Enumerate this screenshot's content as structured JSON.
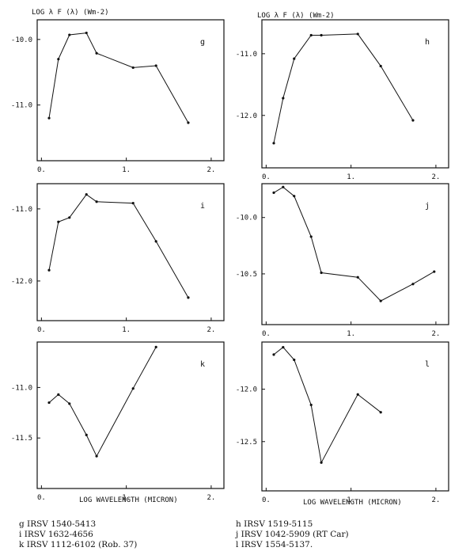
{
  "y_axis_title_left": "LOG λ F (λ) (Wm-2)",
  "y_axis_title_right": "LOG λ F (λ) (Wm-2)",
  "x_axis_title_left": "LOG WAVELENGTH (MICRON)",
  "x_axis_title_right": "LOG WAVELENGTH (MICRON)",
  "captions_left": [
    "g IRSV 1540-5413",
    "i IRSV 1632-4656",
    "k IRSV 1112-6102 (Rob. 37)"
  ],
  "captions_right": [
    "h IRSV 1519-5115",
    "j IRSV 1042-5909 (RT Car)",
    "l IRSV 1554-5137."
  ],
  "chart_data": [
    {
      "type": "line",
      "panel": "g",
      "xlim": [
        -0.05,
        2.15
      ],
      "ylim": [
        -11.85,
        -9.7
      ],
      "xticks": [
        "0.",
        "1.",
        "2."
      ],
      "xtick_values": [
        0,
        1,
        2
      ],
      "yticks": [
        "-10.0",
        "-11.0"
      ],
      "ytick_values": [
        -10.0,
        -11.0
      ],
      "series": [
        {
          "x": [
            0.09,
            0.2,
            0.33,
            0.53,
            0.65,
            1.08,
            1.35,
            1.73
          ],
          "y": [
            -11.2,
            -10.3,
            -9.93,
            -9.9,
            -10.21,
            -10.43,
            -10.4,
            -11.27
          ]
        }
      ]
    },
    {
      "type": "line",
      "panel": "h",
      "xlim": [
        -0.05,
        2.15
      ],
      "ylim": [
        -12.85,
        -10.45
      ],
      "xticks": [
        "0.",
        "1.",
        "2."
      ],
      "xtick_values": [
        0,
        1,
        2
      ],
      "yticks": [
        "-11.0",
        "-12.0"
      ],
      "ytick_values": [
        -11.0,
        -12.0
      ],
      "series": [
        {
          "x": [
            0.09,
            0.2,
            0.33,
            0.53,
            0.65,
            1.08,
            1.35,
            1.73
          ],
          "y": [
            -12.45,
            -11.72,
            -11.08,
            -10.7,
            -10.7,
            -10.68,
            -11.2,
            -12.08
          ]
        }
      ]
    },
    {
      "type": "line",
      "panel": "i",
      "xlim": [
        -0.05,
        2.15
      ],
      "ylim": [
        -12.55,
        -10.65
      ],
      "xticks": [
        "0.",
        "1.",
        "2."
      ],
      "xtick_values": [
        0,
        1,
        2
      ],
      "yticks": [
        "-11.0",
        "-12.0"
      ],
      "ytick_values": [
        -11.0,
        -12.0
      ],
      "series": [
        {
          "x": [
            0.09,
            0.2,
            0.33,
            0.53,
            0.65,
            1.08,
            1.35,
            1.73
          ],
          "y": [
            -11.85,
            -11.18,
            -11.12,
            -10.8,
            -10.9,
            -10.92,
            -11.45,
            -12.23
          ]
        }
      ]
    },
    {
      "type": "line",
      "panel": "j",
      "xlim": [
        -0.05,
        2.15
      ],
      "ylim": [
        -10.95,
        -9.7
      ],
      "xticks": [
        "0.",
        "1.",
        "2."
      ],
      "xtick_values": [
        0,
        1,
        2
      ],
      "yticks": [
        "-10.0",
        "-10.5"
      ],
      "ytick_values": [
        -10.0,
        -10.5
      ],
      "series": [
        {
          "x": [
            0.09,
            0.2,
            0.33,
            0.53,
            0.65,
            1.08,
            1.35,
            1.73,
            1.98
          ],
          "y": [
            -9.78,
            -9.73,
            -9.81,
            -10.17,
            -10.49,
            -10.53,
            -10.74,
            -10.59,
            -10.48
          ]
        }
      ]
    },
    {
      "type": "line",
      "panel": "k",
      "xlim": [
        -0.05,
        2.15
      ],
      "ylim": [
        -12.0,
        -10.55
      ],
      "xticks": [
        "0.",
        "1.",
        "2."
      ],
      "xtick_values": [
        0,
        1,
        2
      ],
      "yticks": [
        "-11.0",
        "-11.5"
      ],
      "ytick_values": [
        -11.0,
        -11.5
      ],
      "series": [
        {
          "x": [
            0.09,
            0.2,
            0.33,
            0.53,
            0.65,
            1.08,
            1.35
          ],
          "y": [
            -11.15,
            -11.07,
            -11.16,
            -11.47,
            -11.68,
            -11.01,
            -10.6
          ]
        }
      ]
    },
    {
      "type": "line",
      "panel": "l",
      "xlim": [
        -0.05,
        2.15
      ],
      "ylim": [
        -12.97,
        -11.55
      ],
      "xticks": [
        "0.",
        "1.",
        "2."
      ],
      "xtick_values": [
        0,
        1,
        2
      ],
      "yticks": [
        "-12.0",
        "-12.5"
      ],
      "ytick_values": [
        -12.0,
        -12.5
      ],
      "series": [
        {
          "x": [
            0.09,
            0.2,
            0.33,
            0.53,
            0.65,
            1.08,
            1.35
          ],
          "y": [
            -11.67,
            -11.6,
            -11.72,
            -12.15,
            -12.7,
            -12.05,
            -12.22
          ]
        }
      ]
    }
  ]
}
